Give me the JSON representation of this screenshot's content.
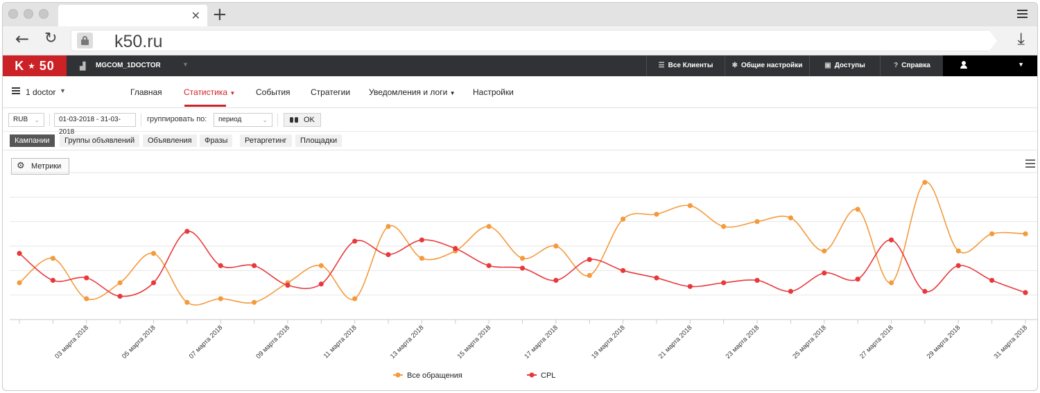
{
  "browser": {
    "url": "k50.ru"
  },
  "header": {
    "logo": "K ⋆ 50",
    "account": "MGCOM_1DOCTOR",
    "nav": [
      {
        "label": "Все Клиенты",
        "icon": "list-icon"
      },
      {
        "label": "Общие настройки",
        "icon": "gear-icon"
      },
      {
        "label": "Доступы",
        "icon": "lock-icon"
      },
      {
        "label": "Справка",
        "icon": "help-icon"
      }
    ]
  },
  "subnav": {
    "project": "1 doctor",
    "tabs": [
      "Главная",
      "Статистика",
      "События",
      "Стратегии",
      "Уведомления и логи",
      "Настройки"
    ],
    "active_tab": "Статистика"
  },
  "filters": {
    "currency": "RUB",
    "date_range": "01-03-2018 - 31-03-2018",
    "group_label": "группировать по:",
    "group_value": "период",
    "ok_label": "OK"
  },
  "levels": {
    "tabs": [
      "Кампании",
      "Группы объявлений",
      "Объявления",
      "Фразы",
      "Ретаргетинг",
      "Площадки"
    ],
    "active": "Кампании"
  },
  "chart_toolbar": {
    "metrics_label": "Метрики"
  },
  "chart_data": {
    "type": "line",
    "x_labels": [
      "03 марта 2018",
      "05 марта 2018",
      "07 марта 2018",
      "09 марта 2018",
      "11 марта 2018",
      "13 марта 2018",
      "15 марта 2018",
      "17 марта 2018",
      "19 марта 2018",
      "21 марта 2018",
      "23 марта 2018",
      "25 марта 2018",
      "27 марта 2018",
      "29 марта 2018",
      "31 марта 2018"
    ],
    "days": [
      1,
      2,
      3,
      4,
      5,
      6,
      7,
      8,
      9,
      10,
      11,
      12,
      13,
      14,
      15,
      16,
      17,
      18,
      19,
      20,
      21,
      22,
      23,
      24,
      25,
      26,
      27,
      28,
      29,
      30,
      31
    ],
    "ylim": [
      0,
      6
    ],
    "series": [
      {
        "name": "Все обращения",
        "color": "#f39a3c",
        "values": [
          1.5,
          2.5,
          0.85,
          1.5,
          2.7,
          0.7,
          0.85,
          0.7,
          1.5,
          2.2,
          0.85,
          3.8,
          2.5,
          2.8,
          3.8,
          2.5,
          3.0,
          1.8,
          4.1,
          4.3,
          4.65,
          3.8,
          4.0,
          4.15,
          2.8,
          4.5,
          1.5,
          5.6,
          2.8,
          3.5,
          3.5
        ]
      },
      {
        "name": "CPL",
        "color": "#e8383b",
        "values": [
          2.7,
          1.6,
          1.7,
          0.95,
          1.5,
          3.6,
          2.2,
          2.2,
          1.4,
          1.45,
          3.2,
          2.65,
          3.25,
          2.9,
          2.2,
          2.1,
          1.6,
          2.45,
          2.0,
          1.7,
          1.35,
          1.5,
          1.6,
          1.15,
          1.9,
          1.65,
          3.25,
          1.15,
          2.2,
          1.6,
          1.1
        ]
      }
    ],
    "legend": [
      "Все обращения",
      "CPL"
    ]
  }
}
